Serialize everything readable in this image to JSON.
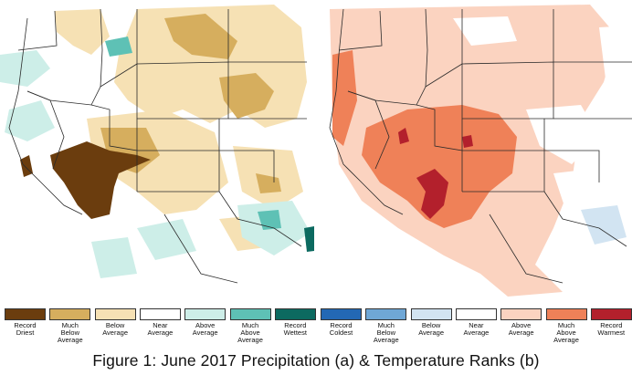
{
  "caption": "Figure 1: June 2017 Precipitation (a) & Temperature Ranks (b)",
  "maps": [
    {
      "id": "precipitation",
      "panel": "a"
    },
    {
      "id": "temperature",
      "panel": "b"
    }
  ],
  "legend": {
    "precipitation": [
      {
        "label": "Record\nDriest",
        "color": "#6b3d0e"
      },
      {
        "label": "Much\nBelow\nAverage",
        "color": "#d6ae5e"
      },
      {
        "label": "Below\nAverage",
        "color": "#f6e1b4"
      },
      {
        "label": "Near\nAverage",
        "color": "#ffffff"
      },
      {
        "label": "Above\nAverage",
        "color": "#cdeee8"
      },
      {
        "label": "Much\nAbove\nAverage",
        "color": "#5ec1b5"
      },
      {
        "label": "Record\nWettest",
        "color": "#0c6a60"
      }
    ],
    "temperature": [
      {
        "label": "Record\nColdest",
        "color": "#2368b4"
      },
      {
        "label": "Much\nBelow\nAverage",
        "color": "#6fa7d6"
      },
      {
        "label": "Below\nAverage",
        "color": "#d2e4f2"
      },
      {
        "label": "Near\nAverage",
        "color": "#ffffff"
      },
      {
        "label": "Above\nAverage",
        "color": "#fbd3c0"
      },
      {
        "label": "Much\nAbove\nAverage",
        "color": "#ef8158"
      },
      {
        "label": "Record\nWarmest",
        "color": "#b3202c"
      }
    ]
  }
}
